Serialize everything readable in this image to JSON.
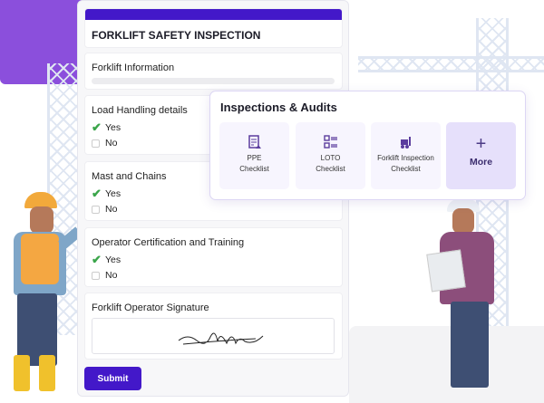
{
  "form": {
    "title": "FORKLIFT SAFETY INSPECTION",
    "sections": [
      {
        "label": "Forklift Information"
      },
      {
        "label": "Load Handling details",
        "options": [
          "Yes",
          "No"
        ],
        "checked": "Yes"
      },
      {
        "label": "Mast and Chains",
        "options": [
          "Yes",
          "No"
        ],
        "checked": "Yes"
      },
      {
        "label": "Operator Certification and Training",
        "options": [
          "Yes",
          "No"
        ],
        "checked": "Yes"
      },
      {
        "label": "Forklift Operator Signature"
      }
    ],
    "submit_label": "Submit"
  },
  "popup": {
    "title": "Inspections & Audits",
    "tiles": [
      {
        "label_1": "PPE",
        "label_2": "Checklist",
        "icon": "clipboard-icon"
      },
      {
        "label_1": "LOTO",
        "label_2": "Checklist",
        "icon": "checklist-icon"
      },
      {
        "label_1": "Forklift Inspection",
        "label_2": "Checklist",
        "icon": "forklift-icon"
      },
      {
        "label_1": "More",
        "icon": "plus-icon"
      }
    ]
  },
  "colors": {
    "accent": "#4318c9",
    "brand_purple": "#8b4fdc",
    "check": "#3aa54a",
    "icon": "#5b3d9e"
  }
}
